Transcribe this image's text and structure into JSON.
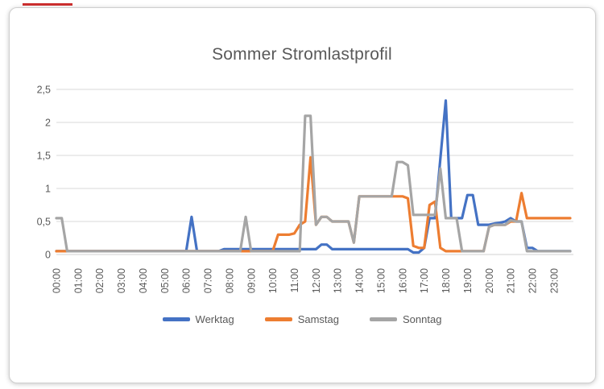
{
  "chart_data": {
    "type": "line",
    "title": "Sommer Stromlastprofil",
    "xlabel": "",
    "ylabel": "",
    "ylim": [
      0,
      2.5
    ],
    "grid": true,
    "legend_position": "bottom",
    "x_interval_minutes": 15,
    "x_labels": [
      "00:00",
      "01:00",
      "02:00",
      "03:00",
      "04:00",
      "05:00",
      "06:00",
      "07:00",
      "08:00",
      "09:00",
      "10:00",
      "11:00",
      "12:00",
      "13:00",
      "14:00",
      "15:00",
      "16:00",
      "17:00",
      "18:00",
      "19:00",
      "20:00",
      "21:00",
      "22:00",
      "23:00"
    ],
    "y_ticks": [
      0,
      0.5,
      1,
      1.5,
      2,
      2.5
    ],
    "y_tick_labels": [
      "0",
      "0,5",
      "1",
      "1,5",
      "2",
      "2,5"
    ],
    "series": [
      {
        "name": "Werktag",
        "color": "#4472C4",
        "values": [
          0.05,
          0.05,
          0.05,
          0.05,
          0.05,
          0.05,
          0.05,
          0.05,
          0.05,
          0.05,
          0.05,
          0.05,
          0.05,
          0.05,
          0.05,
          0.05,
          0.05,
          0.05,
          0.05,
          0.05,
          0.05,
          0.05,
          0.05,
          0.05,
          0.05,
          0.57,
          0.05,
          0.05,
          0.05,
          0.05,
          0.05,
          0.08,
          0.08,
          0.08,
          0.08,
          0.08,
          0.08,
          0.08,
          0.08,
          0.08,
          0.08,
          0.08,
          0.08,
          0.08,
          0.08,
          0.08,
          0.08,
          0.08,
          0.08,
          0.15,
          0.15,
          0.08,
          0.08,
          0.08,
          0.08,
          0.08,
          0.08,
          0.08,
          0.08,
          0.08,
          0.08,
          0.08,
          0.08,
          0.08,
          0.08,
          0.08,
          0.03,
          0.03,
          0.1,
          0.55,
          0.55,
          1.45,
          2.33,
          0.55,
          0.55,
          0.55,
          0.9,
          0.9,
          0.45,
          0.45,
          0.45,
          0.47,
          0.48,
          0.5,
          0.55,
          0.5,
          0.5,
          0.1,
          0.1,
          0.05,
          0.05,
          0.05,
          0.05,
          0.05,
          0.05,
          0.05
        ]
      },
      {
        "name": "Samstag",
        "color": "#ED7D31",
        "values": [
          0.05,
          0.05,
          0.05,
          0.05,
          0.05,
          0.05,
          0.05,
          0.05,
          0.05,
          0.05,
          0.05,
          0.05,
          0.05,
          0.05,
          0.05,
          0.05,
          0.05,
          0.05,
          0.05,
          0.05,
          0.05,
          0.05,
          0.05,
          0.05,
          0.05,
          0.05,
          0.05,
          0.05,
          0.05,
          0.05,
          0.05,
          0.05,
          0.05,
          0.05,
          0.05,
          0.05,
          0.05,
          0.05,
          0.05,
          0.05,
          0.05,
          0.3,
          0.3,
          0.3,
          0.32,
          0.45,
          0.5,
          1.47,
          0.45,
          0.57,
          0.57,
          0.5,
          0.5,
          0.5,
          0.5,
          0.18,
          0.88,
          0.88,
          0.88,
          0.88,
          0.88,
          0.88,
          0.88,
          0.88,
          0.88,
          0.85,
          0.13,
          0.1,
          0.1,
          0.75,
          0.8,
          0.1,
          0.05,
          0.05,
          0.05,
          0.05,
          0.05,
          0.05,
          0.05,
          0.05,
          0.42,
          0.45,
          0.45,
          0.45,
          0.5,
          0.5,
          0.93,
          0.55,
          0.55,
          0.55,
          0.55,
          0.55,
          0.55,
          0.55,
          0.55,
          0.55
        ]
      },
      {
        "name": "Sonntag",
        "color": "#A5A5A5",
        "values": [
          0.55,
          0.55,
          0.05,
          0.05,
          0.05,
          0.05,
          0.05,
          0.05,
          0.05,
          0.05,
          0.05,
          0.05,
          0.05,
          0.05,
          0.05,
          0.05,
          0.05,
          0.05,
          0.05,
          0.05,
          0.05,
          0.05,
          0.05,
          0.05,
          0.05,
          0.05,
          0.05,
          0.05,
          0.05,
          0.05,
          0.05,
          0.05,
          0.05,
          0.05,
          0.05,
          0.57,
          0.05,
          0.05,
          0.05,
          0.05,
          0.05,
          0.05,
          0.05,
          0.05,
          0.05,
          0.05,
          2.1,
          2.1,
          0.45,
          0.57,
          0.57,
          0.5,
          0.5,
          0.5,
          0.5,
          0.18,
          0.88,
          0.88,
          0.88,
          0.88,
          0.88,
          0.88,
          0.88,
          1.4,
          1.4,
          1.35,
          0.6,
          0.6,
          0.6,
          0.6,
          0.6,
          1.3,
          0.55,
          0.55,
          0.55,
          0.05,
          0.05,
          0.05,
          0.05,
          0.05,
          0.42,
          0.45,
          0.45,
          0.45,
          0.52,
          0.5,
          0.5,
          0.05,
          0.05,
          0.05,
          0.05,
          0.05,
          0.05,
          0.05,
          0.05,
          0.05
        ]
      }
    ]
  },
  "styles": {
    "grid_color": "#d9d9d9",
    "text_color": "#595959",
    "artifact_color": "#cc2f2f"
  }
}
